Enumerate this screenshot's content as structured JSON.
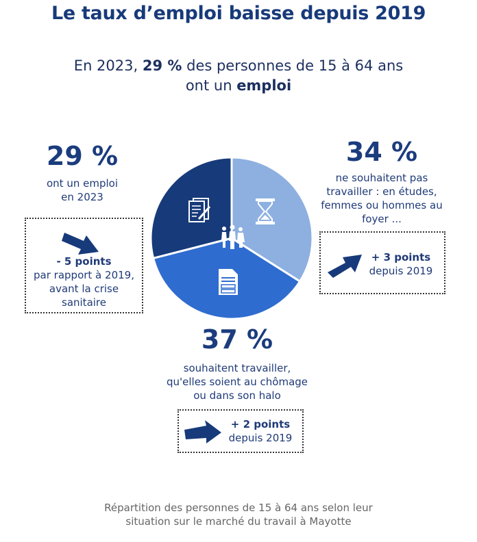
{
  "title": "Le taux d’emploi baisse depuis 2019",
  "subtitle": {
    "part1": "En 2023, ",
    "part2_bold": "29 %",
    "part3": " des personnes de 15 à 64 ans",
    "line2_part1": "ont un ",
    "line2_bold": "emploi"
  },
  "chart_data": {
    "type": "pie",
    "categories": [
      "ont un emploi",
      "ne souhaitent pas travailler",
      "souhaitent travailler"
    ],
    "values": [
      29,
      34,
      37
    ],
    "unit": "%",
    "colors": [
      "#173a7a",
      "#8db0e0",
      "#2f6ccf"
    ],
    "icons": [
      "document-pen-icon",
      "hourglass-icon",
      "form-document-icon",
      "people-icon"
    ]
  },
  "segments": {
    "employed": {
      "pct": "29 %",
      "desc_line1": "ont un emploi",
      "desc_line2": "en 2023",
      "change_bold": "- 5 points",
      "change_line1": "par rapport à 2019,",
      "change_line2": "avant la crise",
      "change_line3": "sanitaire"
    },
    "inactive": {
      "pct": "34 %",
      "desc_line1": "ne souhaitent pas",
      "desc_line2": "travailler : en études,",
      "desc_line3": "femmes ou hommes au",
      "desc_line4": "foyer ...",
      "change_bold": "+ 3 points",
      "change_line1": "depuis 2019"
    },
    "want_work": {
      "pct": "37 %",
      "desc_line1": "souhaitent travailler,",
      "desc_line2": "qu'elles soient au chômage",
      "desc_line3": "ou dans son halo",
      "change_bold": "+ 2 points",
      "change_line1": "depuis 2019"
    }
  },
  "caption": {
    "line1": "Répartition des personnes de 15 à 64 ans selon leur",
    "line2": "situation sur le marché du travail à Mayotte"
  }
}
